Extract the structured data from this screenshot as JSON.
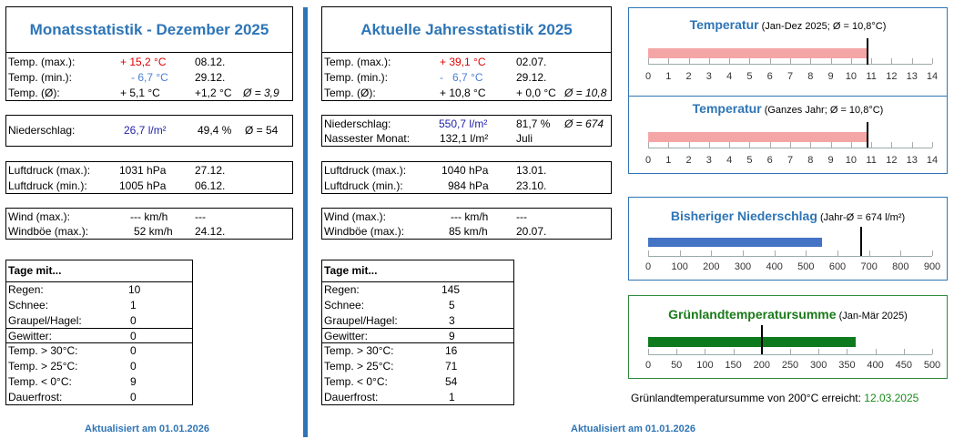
{
  "monat": {
    "title": "Monatsstatistik - Dezember 2025",
    "temp": {
      "max_label": "Temp. (max.):",
      "max_value": "+ 15,2 °C",
      "max_date": "08.12.",
      "min_label": "Temp. (min.):",
      "min_value": "- 6,7 °C",
      "min_date": "29.12.",
      "avg_label": "Temp. (Ø):",
      "avg_value": "+ 5,1 °C",
      "avg_diff": "+1,2 °C",
      "avg_ref": "Ø = 3,9"
    },
    "niederschlag": {
      "label": "Niederschlag:",
      "value": "26,7 l/m²",
      "percent": "49,4 %",
      "ref": "Ø = 54"
    },
    "luftdruck": {
      "max_label": "Luftdruck (max.):",
      "max_value": "1031 hPa",
      "max_date": "27.12.",
      "min_label": "Luftdruck (min.):",
      "min_value": "1005 hPa",
      "min_date": "06.12."
    },
    "wind": {
      "max_label": "Wind (max.):",
      "max_value": "--- km/h",
      "max_date": "---",
      "boe_label": "Windböe (max.):",
      "boe_value": "52 km/h",
      "boe_date": "24.12."
    },
    "tage": {
      "header": "Tage mit...",
      "rows": [
        {
          "label": "Regen:",
          "value": "10"
        },
        {
          "label": "Schnee:",
          "value": "1"
        },
        {
          "label": "Graupel/Hagel:",
          "value": "0"
        },
        {
          "label": "Gewitter:",
          "value": "0"
        },
        {
          "label": "Temp. > 30°C:",
          "value": "0"
        },
        {
          "label": "Temp. > 25°C:",
          "value": "0"
        },
        {
          "label": "Temp. < 0°C:",
          "value": "9"
        },
        {
          "label": "Dauerfrost:",
          "value": "0"
        }
      ]
    },
    "footer": "Aktualisiert am 01.01.2026"
  },
  "jahr": {
    "title": "Aktuelle Jahresstatistik 2025",
    "temp": {
      "max_label": "Temp. (max.):",
      "max_value": "+ 39,1 °C",
      "max_date": "02.07.",
      "min_label": "Temp. (min.):",
      "min_value": "-   6,7 °C",
      "min_date": "29.12.",
      "avg_label": "Temp. (Ø):",
      "avg_value": "+ 10,8 °C",
      "avg_diff": "+ 0,0 °C",
      "avg_ref": "Ø = 10,8"
    },
    "niederschlag": {
      "label": "Niederschlag:",
      "value": "550,7 l/m²",
      "percent": "81,7 %",
      "ref": "Ø = 674",
      "nass_label": "Nassester Monat:",
      "nass_value": "132,1 l/m²",
      "nass_month": "Juli"
    },
    "luftdruck": {
      "max_label": "Luftdruck (max.):",
      "max_value": "1040 hPa",
      "max_date": "13.01.",
      "min_label": "Luftdruck (min.):",
      "min_value": "984 hPa",
      "min_date": "23.10."
    },
    "wind": {
      "max_label": "Wind (max.):",
      "max_value": "--- km/h",
      "max_date": "---",
      "boe_label": "Windböe (max.):",
      "boe_value": "85 km/h",
      "boe_date": "20.07."
    },
    "tage": {
      "header": "Tage mit...",
      "rows": [
        {
          "label": "Regen:",
          "value": "145"
        },
        {
          "label": "Schnee:",
          "value": "5"
        },
        {
          "label": "Graupel/Hagel:",
          "value": "3"
        },
        {
          "label": "Gewitter:",
          "value": "9"
        },
        {
          "label": "Temp. > 30°C:",
          "value": "16"
        },
        {
          "label": "Temp. > 25°C:",
          "value": "71"
        },
        {
          "label": "Temp. < 0°C:",
          "value": "54"
        },
        {
          "label": "Dauerfrost:",
          "value": "1"
        }
      ]
    },
    "footer": "Aktualisiert am 01.01.2026"
  },
  "charts": {
    "temp1": {
      "title": "Temperatur",
      "subtitle": " (Jan-Dez 2025; Ø = 10,8°C)"
    },
    "temp2": {
      "title": "Temperatur",
      "subtitle": " (Ganzes Jahr; Ø = 10,8°C)"
    },
    "regen": {
      "title": "Bisheriger Niederschlag",
      "subtitle": " (Jahr-Ø = 674 l/m²)"
    },
    "gts": {
      "title": "Grünlandtemperatursumme",
      "subtitle": " (Jan-Mär 2025)"
    },
    "gts_note": {
      "text": "Grünlandtemperatursumme von 200°C erreicht:",
      "date": "12.03.2025"
    }
  },
  "chart_data": [
    {
      "type": "bar",
      "orientation": "horizontal",
      "values": [
        10.8
      ],
      "marker": 10.8,
      "xlim": [
        0,
        14
      ],
      "ticks": [
        "0",
        "1",
        "2",
        "3",
        "4",
        "5",
        "6",
        "7",
        "8",
        "9",
        "10",
        "11",
        "12",
        "13",
        "14"
      ],
      "color": "#f4a6a6"
    },
    {
      "type": "bar",
      "orientation": "horizontal",
      "values": [
        10.8
      ],
      "marker": 10.8,
      "xlim": [
        0,
        14
      ],
      "ticks": [
        "0",
        "1",
        "2",
        "3",
        "4",
        "5",
        "6",
        "7",
        "8",
        "9",
        "10",
        "11",
        "12",
        "13",
        "14"
      ],
      "color": "#f4a6a6"
    },
    {
      "type": "bar",
      "orientation": "horizontal",
      "values": [
        550.7
      ],
      "marker": 674,
      "xlim": [
        0,
        900
      ],
      "ticks": [
        "0",
        "100",
        "200",
        "300",
        "400",
        "500",
        "600",
        "700",
        "800",
        "900"
      ],
      "color": "#4472c4"
    },
    {
      "type": "bar",
      "orientation": "horizontal",
      "values": [
        365
      ],
      "marker": 200,
      "xlim": [
        0,
        500
      ],
      "ticks": [
        "0",
        "50",
        "100",
        "150",
        "200",
        "250",
        "300",
        "350",
        "400",
        "450",
        "500"
      ],
      "color": "#0e7a1e"
    }
  ]
}
